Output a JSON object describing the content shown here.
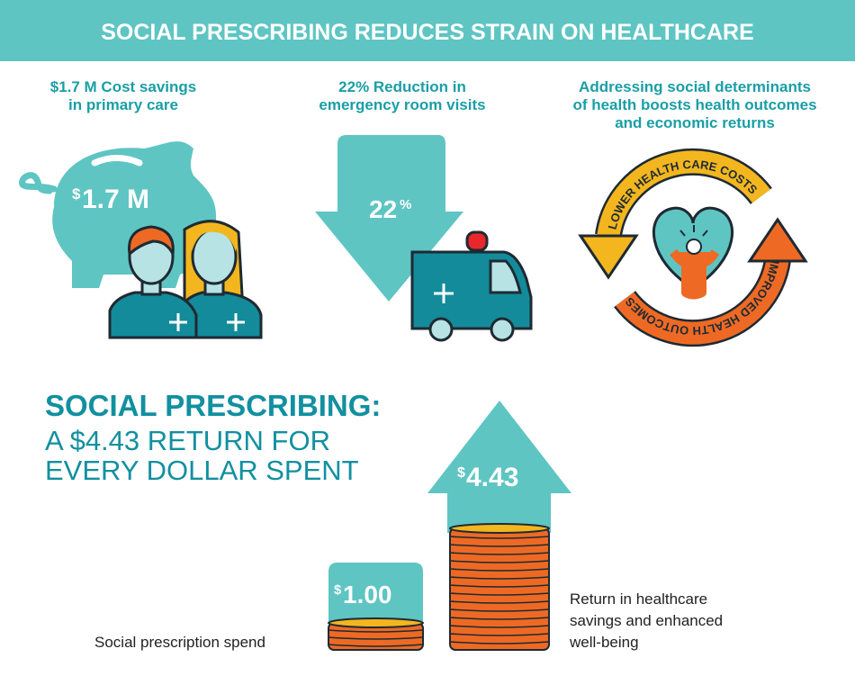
{
  "header": {
    "title": "SOCIAL PRESCRIBING REDUCES STRAIN ON HEALTHCARE"
  },
  "stats": [
    {
      "caption_lines": [
        "$1.7 M Cost savings",
        "in primary care"
      ],
      "icon_value_symbol": "$",
      "icon_value": "1.7 M",
      "icon": "piggy-bank-with-healthcare-workers"
    },
    {
      "caption_lines": [
        "22% Reduction in",
        "emergency room visits"
      ],
      "icon_value": "22",
      "icon_value_symbol": "%",
      "icon": "down-arrow-with-ambulance"
    },
    {
      "caption_lines": [
        "Addressing social determinants",
        "of health boosts health outcomes",
        "and economic returns"
      ],
      "cycle_labels": [
        "LOWER HEALTH CARE COSTS",
        "IMPROVED HEALTH OUTCOMES"
      ],
      "icon": "cycle-heart-person"
    }
  ],
  "roi": {
    "heading": "SOCIAL PRESCRIBING:",
    "subheading_lines": [
      "A $4.43 RETURN FOR",
      "EVERY DOLLAR SPENT"
    ],
    "spend": {
      "symbol": "$",
      "value": "1.00",
      "label": "Social prescription spend"
    },
    "return": {
      "symbol": "$",
      "value": "4.43",
      "label_lines": [
        "Return in healthcare",
        "savings and enhanced",
        "well-being"
      ]
    }
  },
  "colors": {
    "teal": "#5ec5c3",
    "dark_teal": "#1190a0",
    "orange": "#ee6a24",
    "yellow": "#f3b61f",
    "person_dark": "#138b9a",
    "skin": "#b7e3e4"
  }
}
